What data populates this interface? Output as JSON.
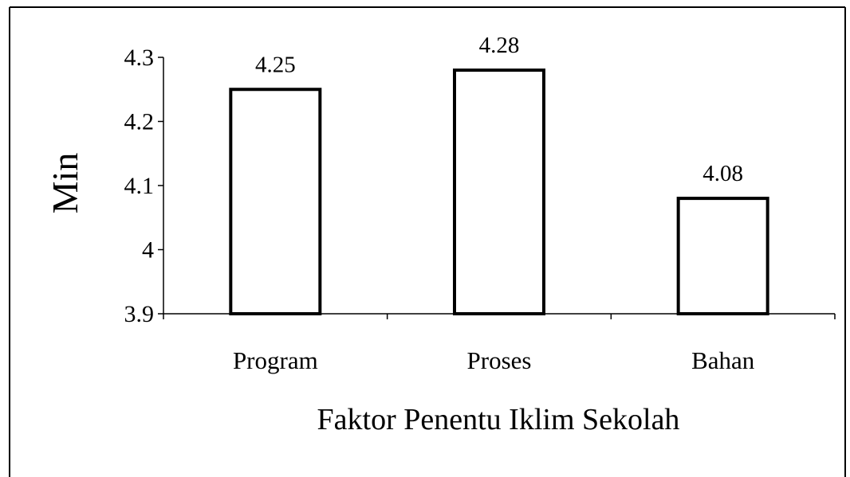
{
  "chart_data": {
    "type": "bar",
    "categories": [
      "Program",
      "Proses",
      "Bahan"
    ],
    "values": [
      4.25,
      4.28,
      4.08
    ],
    "value_labels": [
      "4.25",
      "4.28",
      "4.08"
    ],
    "xlabel": "Faktor Penentu Iklim Sekolah",
    "ylabel": "Min",
    "ylim": [
      3.9,
      4.3
    ],
    "yticks": [
      3.9,
      4,
      4.1,
      4.2,
      4.3
    ],
    "ytick_labels": [
      "3.9",
      "4",
      "4.1",
      "4.2",
      "4.3"
    ],
    "grid": false,
    "legend": "none",
    "bar_fill": "#ffffff",
    "bar_stroke": "#000000"
  }
}
